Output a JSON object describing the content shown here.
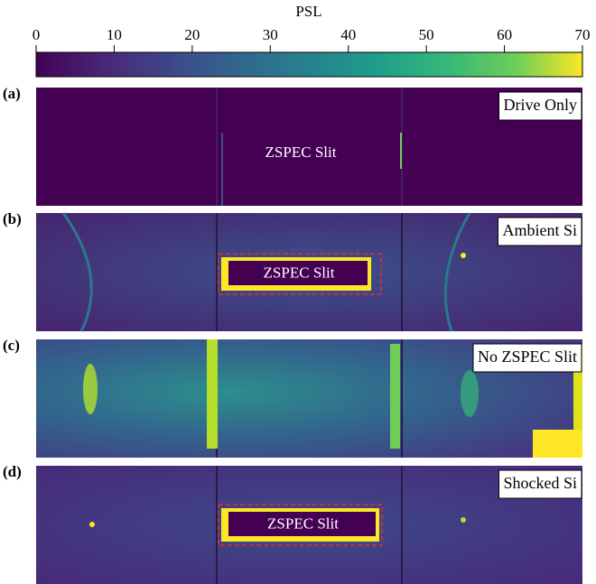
{
  "colorbar": {
    "label": "PSL",
    "lim": [
      0,
      70
    ],
    "ticks": [
      0,
      10,
      20,
      30,
      40,
      50,
      60,
      70
    ]
  },
  "panels": [
    {
      "label": "(a)",
      "title": "Drive Only",
      "slit_label": "ZSPEC Slit"
    },
    {
      "label": "(b)",
      "title": "Ambient Si",
      "slit_label": "ZSPEC Slit"
    },
    {
      "label": "(c)",
      "title": "No ZSPEC Slit"
    },
    {
      "label": "(d)",
      "title": "Shocked Si",
      "slit_label": "ZSPEC Slit"
    }
  ]
}
